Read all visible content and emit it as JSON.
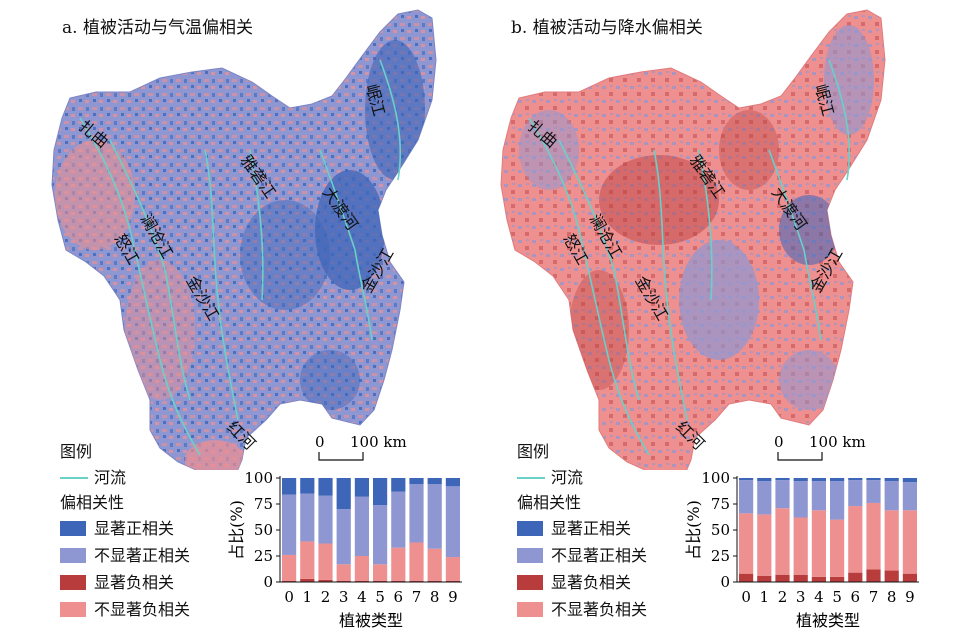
{
  "colors": {
    "sig_pos": "#3d65b8",
    "nonsig_pos": "#8f97d3",
    "sig_neg": "#b83c3c",
    "nonsig_neg": "#ee8f90",
    "river": "#69d1c8"
  },
  "panels": [
    {
      "title": "a. 植被活动与气温偏相关",
      "river_labels": [
        "扎曲",
        "澜沧江",
        "怒江",
        "金沙江",
        "雅砻江",
        "大渡河",
        "岷江",
        "金沙江",
        "红河"
      ],
      "legend": {
        "heading": "图例",
        "river": "河流",
        "category_heading": "偏相关性",
        "items": [
          "显著正相关",
          "不显著正相关",
          "显著负相关",
          "不显著负相关"
        ]
      },
      "scale": {
        "zero": "0",
        "dist": "100 km"
      },
      "chart_data": {
        "type": "bar",
        "stacked": true,
        "categories": [
          "0",
          "1",
          "2",
          "3",
          "4",
          "5",
          "6",
          "7",
          "8",
          "9"
        ],
        "xlabel": "植被类型",
        "ylabel": "占比(%)",
        "ylim": [
          0,
          100
        ],
        "yticks": [
          "0",
          "25",
          "50",
          "75",
          "100"
        ],
        "series": [
          {
            "name": "显著负相关",
            "color": "#b83c3c",
            "values": [
              1,
              3,
              2,
              1,
              1,
              1,
              1,
              1,
              1,
              1
            ]
          },
          {
            "name": "不显著负相关",
            "color": "#ee8f90",
            "values": [
              25,
              36,
              35,
              16,
              24,
              16,
              32,
              37,
              31,
              23
            ]
          },
          {
            "name": "不显著正相关",
            "color": "#8f97d3",
            "values": [
              58,
              46,
              46,
              53,
              57,
              57,
              54,
              56,
              62,
              68
            ]
          },
          {
            "name": "显著正相关",
            "color": "#3d65b8",
            "values": [
              16,
              15,
              17,
              30,
              18,
              26,
              13,
              6,
              6,
              8
            ]
          }
        ]
      }
    },
    {
      "title": "b. 植被活动与降水偏相关",
      "river_labels": [
        "扎曲",
        "澜沧江",
        "怒江",
        "金沙江",
        "雅砻江",
        "大渡河",
        "岷江",
        "金沙江",
        "红河"
      ],
      "legend": {
        "heading": "图例",
        "river": "河流",
        "category_heading": "偏相关性",
        "items": [
          "显著正相关",
          "不显著正相关",
          "显著负相关",
          "不显著负相关"
        ]
      },
      "scale": {
        "zero": "0",
        "dist": "100 km"
      },
      "chart_data": {
        "type": "bar",
        "stacked": true,
        "categories": [
          "0",
          "1",
          "2",
          "3",
          "4",
          "5",
          "6",
          "7",
          "8",
          "9"
        ],
        "xlabel": "植被类型",
        "ylabel": "占比(%)",
        "ylim": [
          0,
          100
        ],
        "yticks": [
          "0",
          "25",
          "50",
          "75",
          "100"
        ],
        "series": [
          {
            "name": "显著负相关",
            "color": "#b83c3c",
            "values": [
              8,
              6,
              7,
              7,
              5,
              5,
              9,
              12,
              11,
              8
            ]
          },
          {
            "name": "不显著负相关",
            "color": "#ee8f90",
            "values": [
              58,
              59,
              64,
              55,
              64,
              55,
              64,
              64,
              58,
              61
            ]
          },
          {
            "name": "不显著正相关",
            "color": "#8f97d3",
            "values": [
              32,
              32,
              27,
              35,
              28,
              37,
              25,
              22,
              28,
              27
            ]
          },
          {
            "name": "显著正相关",
            "color": "#3d65b8",
            "values": [
              2,
              3,
              2,
              3,
              3,
              3,
              2,
              2,
              3,
              4
            ]
          }
        ]
      }
    }
  ]
}
